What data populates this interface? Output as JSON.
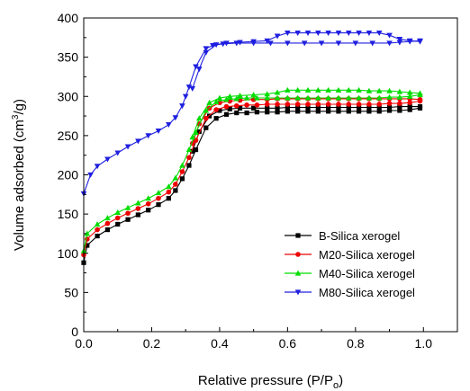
{
  "chart_data": {
    "type": "line",
    "title": "",
    "xlabel": "Relative pressure (P/P",
    "xlabel_sub": "o",
    "xlabel_close": ")",
    "ylabel": "Volume adsorbed (cm",
    "ylabel_sup": "3",
    "ylabel_close": "/g)",
    "xlim": [
      0.0,
      1.1
    ],
    "ylim": [
      0,
      400
    ],
    "xticks": [
      0.0,
      0.2,
      0.4,
      0.6,
      0.8,
      1.0
    ],
    "xtick_labels": [
      "0.0",
      "0.2",
      "0.4",
      "0.6",
      "0.8",
      "1.0"
    ],
    "yticks": [
      0,
      50,
      100,
      150,
      200,
      250,
      300,
      350,
      400
    ],
    "ytick_labels": [
      "0",
      "50",
      "100",
      "150",
      "200",
      "250",
      "300",
      "350",
      "400"
    ],
    "grid": false,
    "legend_position": "right-bottom",
    "series": [
      {
        "name": "B-Silica xerogel",
        "color": "#000000",
        "marker": "square",
        "adsorption": {
          "x": [
            0.0,
            0.01,
            0.04,
            0.07,
            0.1,
            0.13,
            0.16,
            0.19,
            0.22,
            0.25,
            0.27,
            0.29,
            0.31,
            0.33,
            0.36,
            0.39,
            0.42,
            0.45,
            0.48,
            0.51,
            0.54,
            0.57,
            0.6,
            0.63,
            0.66,
            0.69,
            0.72,
            0.75,
            0.78,
            0.81,
            0.84,
            0.87,
            0.9,
            0.93,
            0.96,
            0.99
          ],
          "y": [
            88,
            110,
            122,
            130,
            137,
            143,
            149,
            155,
            162,
            170,
            180,
            195,
            212,
            232,
            260,
            272,
            277,
            279,
            279,
            280,
            280,
            280,
            281,
            281,
            281,
            281,
            281,
            281,
            281,
            281,
            281,
            281,
            282,
            282,
            283,
            285
          ]
        },
        "desorption": {
          "x": [
            0.99,
            0.96,
            0.93,
            0.9,
            0.87,
            0.84,
            0.81,
            0.78,
            0.75,
            0.72,
            0.69,
            0.66,
            0.63,
            0.6,
            0.57,
            0.54,
            0.5,
            0.46,
            0.43,
            0.4,
            0.37,
            0.34,
            0.32
          ],
          "y": [
            287,
            287,
            287,
            286,
            286,
            286,
            286,
            286,
            286,
            286,
            286,
            286,
            286,
            286,
            285,
            285,
            285,
            285,
            284,
            282,
            275,
            255,
            230
          ]
        }
      },
      {
        "name": "M20-Silica xerogel",
        "color": "#ee0000",
        "marker": "circle",
        "adsorption": {
          "x": [
            0.0,
            0.01,
            0.04,
            0.07,
            0.1,
            0.13,
            0.16,
            0.19,
            0.22,
            0.25,
            0.27,
            0.29,
            0.31,
            0.33,
            0.36,
            0.39,
            0.42,
            0.45,
            0.48,
            0.51,
            0.54,
            0.57,
            0.6,
            0.63,
            0.66,
            0.69,
            0.72,
            0.75,
            0.78,
            0.81,
            0.84,
            0.87,
            0.9,
            0.93,
            0.96,
            0.99
          ],
          "y": [
            98,
            118,
            130,
            138,
            145,
            151,
            157,
            163,
            170,
            178,
            188,
            204,
            222,
            244,
            272,
            283,
            287,
            288,
            289,
            289,
            290,
            290,
            290,
            290,
            290,
            290,
            290,
            290,
            290,
            290,
            290,
            290,
            291,
            291,
            292,
            294
          ]
        },
        "desorption": {
          "x": [
            0.99,
            0.96,
            0.93,
            0.9,
            0.87,
            0.84,
            0.81,
            0.78,
            0.75,
            0.72,
            0.69,
            0.66,
            0.63,
            0.6,
            0.57,
            0.54,
            0.5,
            0.46,
            0.43,
            0.4,
            0.37,
            0.34,
            0.32
          ],
          "y": [
            296,
            297,
            297,
            297,
            297,
            297,
            297,
            297,
            297,
            297,
            297,
            297,
            297,
            297,
            297,
            296,
            296,
            295,
            294,
            292,
            285,
            265,
            240
          ]
        }
      },
      {
        "name": "M40-Silica xerogel",
        "color": "#00dd00",
        "marker": "triangle-up",
        "adsorption": {
          "x": [
            0.0,
            0.01,
            0.04,
            0.07,
            0.1,
            0.13,
            0.16,
            0.19,
            0.22,
            0.25,
            0.27,
            0.29,
            0.31,
            0.33,
            0.36,
            0.39,
            0.42,
            0.45,
            0.48,
            0.51,
            0.54,
            0.57,
            0.6,
            0.63,
            0.66,
            0.69,
            0.72,
            0.75,
            0.78,
            0.81,
            0.84,
            0.87,
            0.9,
            0.93,
            0.96,
            0.99
          ],
          "y": [
            103,
            125,
            137,
            145,
            152,
            158,
            164,
            170,
            177,
            185,
            196,
            212,
            232,
            254,
            282,
            293,
            296,
            297,
            298,
            298,
            298,
            298,
            298,
            298,
            298,
            298,
            298,
            298,
            298,
            298,
            298,
            298,
            299,
            299,
            300,
            302
          ]
        },
        "desorption": {
          "x": [
            0.99,
            0.96,
            0.93,
            0.9,
            0.87,
            0.84,
            0.81,
            0.78,
            0.75,
            0.72,
            0.69,
            0.66,
            0.63,
            0.6,
            0.57,
            0.54,
            0.5,
            0.46,
            0.43,
            0.4,
            0.37,
            0.34,
            0.32
          ],
          "y": [
            304,
            305,
            306,
            307,
            307,
            307,
            308,
            308,
            308,
            308,
            308,
            308,
            308,
            308,
            305,
            303,
            302,
            301,
            300,
            298,
            292,
            272,
            248
          ]
        }
      },
      {
        "name": "M80-Silica xerogel",
        "color": "#1f1fe0",
        "marker": "triangle-down",
        "adsorption": {
          "x": [
            0.0,
            0.02,
            0.04,
            0.07,
            0.1,
            0.13,
            0.16,
            0.19,
            0.22,
            0.25,
            0.27,
            0.29,
            0.3,
            0.31,
            0.33,
            0.36,
            0.38,
            0.41,
            0.45,
            0.5,
            0.55,
            0.6,
            0.65,
            0.7,
            0.75,
            0.8,
            0.85,
            0.9,
            0.93,
            0.96,
            0.99
          ],
          "y": [
            176,
            200,
            211,
            220,
            228,
            236,
            243,
            250,
            256,
            264,
            273,
            288,
            300,
            312,
            338,
            361,
            365,
            367,
            368,
            368,
            368,
            368,
            368,
            368,
            368,
            368,
            368,
            368,
            369,
            370,
            371
          ]
        },
        "desorption": {
          "x": [
            0.99,
            0.96,
            0.93,
            0.9,
            0.87,
            0.84,
            0.81,
            0.78,
            0.75,
            0.72,
            0.69,
            0.66,
            0.63,
            0.6,
            0.57,
            0.54,
            0.5,
            0.46,
            0.42,
            0.39,
            0.36,
            0.34,
            0.32
          ],
          "y": [
            370,
            371,
            373,
            378,
            381,
            381,
            381,
            381,
            381,
            381,
            381,
            381,
            381,
            381,
            377,
            371,
            370,
            369,
            368,
            366,
            356,
            335,
            310
          ]
        }
      }
    ]
  }
}
